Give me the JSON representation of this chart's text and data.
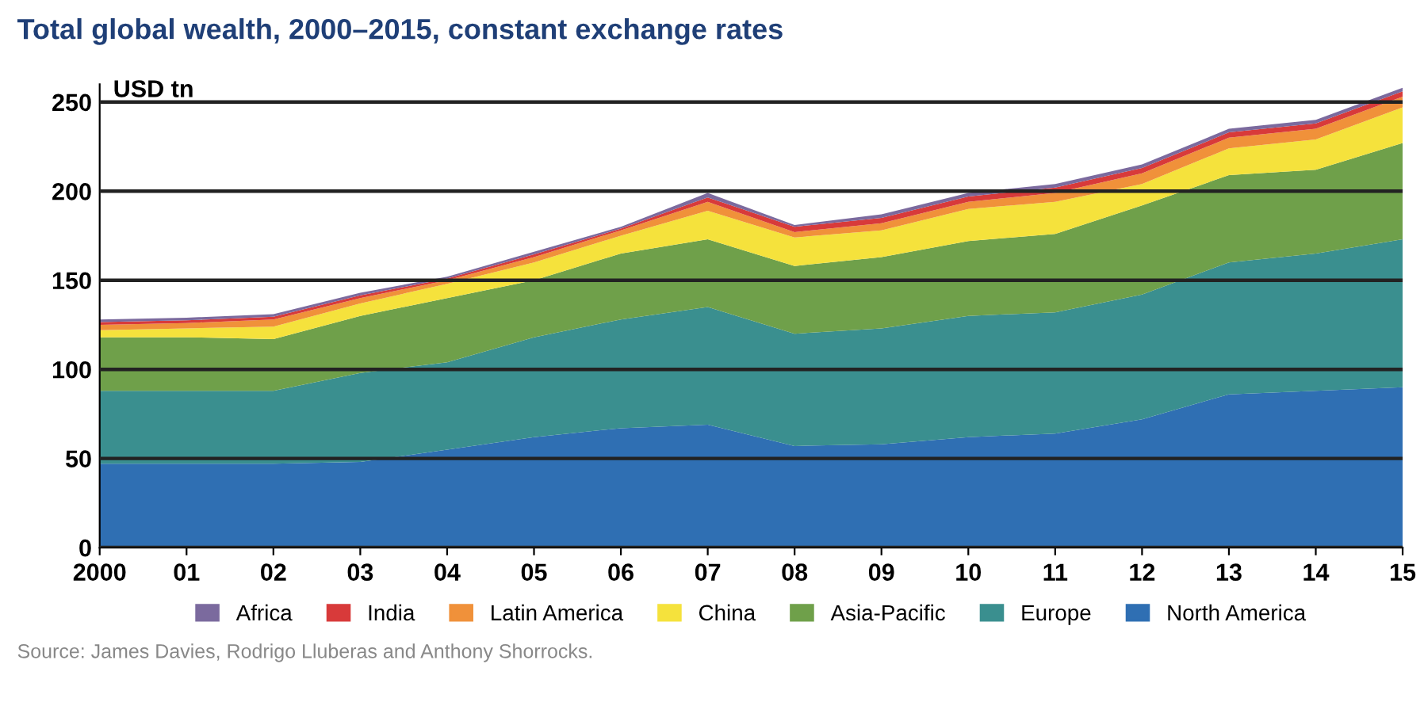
{
  "chart_data": {
    "type": "area",
    "stacked": true,
    "title": "Total global wealth, 2000–2015, constant exchange rates",
    "ylabel": "USD tn",
    "x": [
      2000,
      2001,
      2002,
      2003,
      2004,
      2005,
      2006,
      2007,
      2008,
      2009,
      2010,
      2011,
      2012,
      2013,
      2014,
      2015
    ],
    "xlim": [
      2000,
      2015
    ],
    "xticks": [
      {
        "value": 2000,
        "label": "2000"
      },
      {
        "value": 2001,
        "label": "01"
      },
      {
        "value": 2002,
        "label": "02"
      },
      {
        "value": 2003,
        "label": "03"
      },
      {
        "value": 2004,
        "label": "04"
      },
      {
        "value": 2005,
        "label": "05"
      },
      {
        "value": 2006,
        "label": "06"
      },
      {
        "value": 2007,
        "label": "07"
      },
      {
        "value": 2008,
        "label": "08"
      },
      {
        "value": 2009,
        "label": "09"
      },
      {
        "value": 2010,
        "label": "10"
      },
      {
        "value": 2011,
        "label": "11"
      },
      {
        "value": 2012,
        "label": "12"
      },
      {
        "value": 2013,
        "label": "13"
      },
      {
        "value": 2014,
        "label": "14"
      },
      {
        "value": 2015,
        "label": "15"
      }
    ],
    "ylim": [
      0,
      260
    ],
    "yticks": [
      0,
      50,
      100,
      150,
      200,
      250
    ],
    "grid": "y",
    "legend": "bottom",
    "series": [
      {
        "name": "North America",
        "color": "#2f6fb3",
        "values": [
          47,
          47,
          47,
          48,
          55,
          62,
          67,
          69,
          57,
          58,
          62,
          64,
          72,
          86,
          88,
          90
        ]
      },
      {
        "name": "Europe",
        "color": "#3a8f8f",
        "values": [
          41,
          41,
          41,
          50,
          49,
          56,
          61,
          66,
          63,
          65,
          68,
          68,
          70,
          74,
          77,
          83
        ]
      },
      {
        "name": "Asia-Pacific",
        "color": "#6fa04a",
        "values": [
          30,
          30,
          29,
          32,
          36,
          32,
          37,
          38,
          38,
          40,
          42,
          44,
          50,
          49,
          47,
          54
        ]
      },
      {
        "name": "China",
        "color": "#f5e23c",
        "values": [
          4,
          5,
          7,
          7,
          8,
          10,
          10,
          16,
          16,
          15,
          18,
          18,
          12,
          15,
          17,
          20
        ]
      },
      {
        "name": "Latin America",
        "color": "#f0913a",
        "values": [
          3,
          3,
          4,
          3,
          2,
          3,
          3,
          5,
          3,
          4,
          4,
          5,
          6,
          6,
          6,
          6
        ]
      },
      {
        "name": "India",
        "color": "#d83a3a",
        "values": [
          1.5,
          1.5,
          1.5,
          1.5,
          1,
          1.5,
          1,
          2.5,
          3,
          3,
          3,
          3,
          3,
          3,
          3,
          3
        ]
      },
      {
        "name": "Africa",
        "color": "#7b6a9e",
        "values": [
          1.5,
          1.5,
          1.5,
          1.5,
          1,
          1.5,
          1,
          2.5,
          1,
          2,
          2,
          2,
          2,
          2,
          2,
          2
        ]
      }
    ],
    "annotations": [
      "Source: James Davies, Rodrigo Lluberas and Anthony Shorrocks."
    ]
  }
}
